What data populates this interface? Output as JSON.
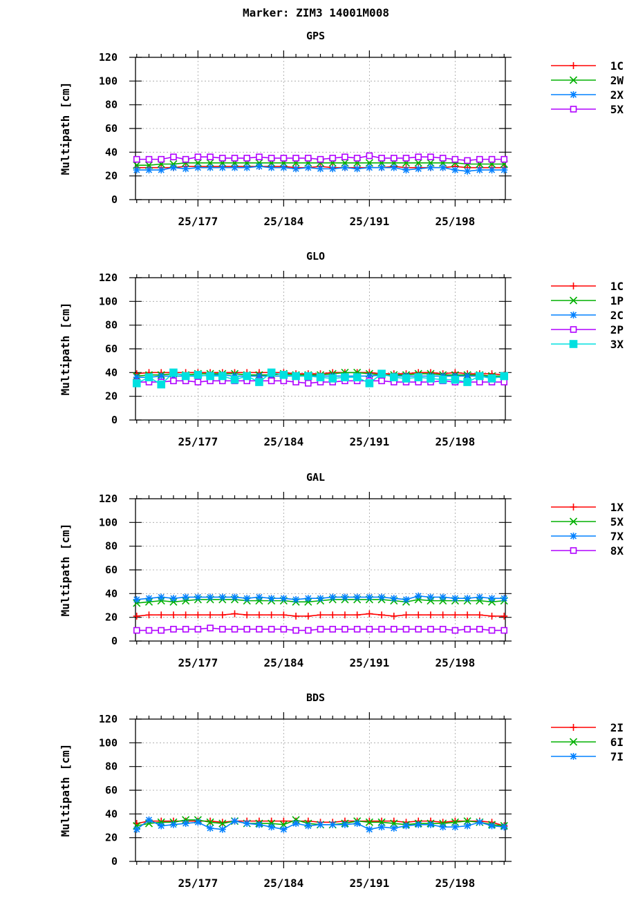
{
  "figure": {
    "title": "Marker: ZIM3 14001M008"
  },
  "chart_data": [
    {
      "type": "line",
      "title": "GPS",
      "ylabel": "Multipath [cm]",
      "xlabel": "",
      "ylim": [
        0,
        120
      ],
      "yticks": [
        0,
        20,
        40,
        60,
        80,
        100,
        120
      ],
      "x": [
        172,
        173,
        174,
        175,
        176,
        177,
        178,
        179,
        180,
        181,
        182,
        183,
        184,
        185,
        186,
        187,
        188,
        189,
        190,
        191,
        192,
        193,
        194,
        195,
        196,
        197,
        198,
        199,
        200,
        201,
        202
      ],
      "xlim": [
        171.9,
        202.1
      ],
      "xticks": [
        177,
        184,
        191,
        198
      ],
      "xticklabels": [
        "25/177",
        "25/184",
        "25/191",
        "25/198"
      ],
      "grid": true,
      "legend": "right",
      "series": [
        {
          "name": "1C",
          "color": "#ff0000",
          "marker": "plus",
          "values": [
            27,
            27,
            27,
            27,
            28,
            28,
            28,
            28,
            28,
            28,
            28,
            28,
            28,
            27,
            27,
            28,
            27,
            27,
            27,
            27,
            27,
            28,
            27,
            27,
            27,
            27,
            28,
            27,
            27,
            27,
            27
          ]
        },
        {
          "name": "2W",
          "color": "#00b000",
          "marker": "cross",
          "values": [
            29,
            29,
            30,
            30,
            31,
            31,
            31,
            31,
            31,
            31,
            31,
            31,
            31,
            31,
            31,
            31,
            31,
            31,
            31,
            31,
            31,
            31,
            31,
            31,
            31,
            31,
            31,
            30,
            30,
            30,
            30
          ]
        },
        {
          "name": "2X",
          "color": "#0080ff",
          "marker": "star",
          "values": [
            25,
            25,
            25,
            27,
            26,
            27,
            27,
            27,
            27,
            27,
            28,
            27,
            27,
            26,
            27,
            26,
            26,
            27,
            26,
            27,
            27,
            27,
            25,
            26,
            27,
            27,
            25,
            24,
            25,
            25,
            25
          ]
        },
        {
          "name": "5X",
          "color": "#b000ff",
          "marker": "square",
          "values": [
            34,
            34,
            34,
            36,
            34,
            36,
            36,
            35,
            35,
            35,
            36,
            35,
            35,
            35,
            35,
            34,
            35,
            36,
            35,
            37,
            35,
            35,
            35,
            36,
            36,
            35,
            34,
            33,
            34,
            34,
            34
          ]
        }
      ]
    },
    {
      "type": "line",
      "title": "GLO",
      "ylabel": "Multipath [cm]",
      "xlabel": "",
      "ylim": [
        0,
        120
      ],
      "yticks": [
        0,
        20,
        40,
        60,
        80,
        100,
        120
      ],
      "x": [
        172,
        173,
        174,
        175,
        176,
        177,
        178,
        179,
        180,
        181,
        182,
        183,
        184,
        185,
        186,
        187,
        188,
        189,
        190,
        191,
        192,
        193,
        194,
        195,
        196,
        197,
        198,
        199,
        200,
        201,
        202
      ],
      "xlim": [
        171.9,
        202.1
      ],
      "xticks": [
        177,
        184,
        191,
        198
      ],
      "xticklabels": [
        "25/177",
        "25/184",
        "25/191",
        "25/198"
      ],
      "grid": true,
      "legend": "right",
      "series": [
        {
          "name": "1C",
          "color": "#ff0000",
          "marker": "plus",
          "values": [
            39,
            40,
            40,
            40,
            40,
            40,
            40,
            40,
            40,
            40,
            40,
            40,
            40,
            39,
            39,
            39,
            40,
            40,
            40,
            40,
            39,
            39,
            39,
            40,
            40,
            39,
            40,
            39,
            39,
            39,
            38
          ]
        },
        {
          "name": "1P",
          "color": "#00b000",
          "marker": "cross",
          "values": [
            37,
            38,
            38,
            39,
            38,
            39,
            39,
            39,
            39,
            38,
            38,
            38,
            39,
            38,
            38,
            38,
            39,
            40,
            40,
            39,
            38,
            38,
            38,
            39,
            39,
            38,
            38,
            38,
            38,
            37,
            37
          ]
        },
        {
          "name": "2C",
          "color": "#0080ff",
          "marker": "star",
          "values": [
            36,
            36,
            37,
            37,
            37,
            37,
            38,
            38,
            37,
            37,
            37,
            37,
            37,
            37,
            37,
            37,
            37,
            37,
            37,
            37,
            38,
            37,
            37,
            37,
            37,
            37,
            37,
            37,
            37,
            36,
            36
          ]
        },
        {
          "name": "2P",
          "color": "#b000ff",
          "marker": "square",
          "values": [
            32,
            32,
            32,
            33,
            33,
            32,
            33,
            33,
            33,
            33,
            33,
            33,
            33,
            32,
            31,
            32,
            32,
            33,
            33,
            33,
            33,
            32,
            32,
            32,
            32,
            33,
            32,
            32,
            32,
            32,
            32
          ]
        },
        {
          "name": "3X",
          "color": "#00e0e0",
          "marker": "filled-square",
          "values": [
            31,
            36,
            30,
            40,
            37,
            38,
            37,
            37,
            34,
            37,
            32,
            40,
            38,
            37,
            37,
            36,
            35,
            36,
            36,
            31,
            39,
            36,
            35,
            36,
            35,
            34,
            34,
            32,
            37,
            35,
            37
          ]
        }
      ]
    },
    {
      "type": "line",
      "title": "GAL",
      "ylabel": "Multipath [cm]",
      "xlabel": "",
      "ylim": [
        0,
        120
      ],
      "yticks": [
        0,
        20,
        40,
        60,
        80,
        100,
        120
      ],
      "x": [
        172,
        173,
        174,
        175,
        176,
        177,
        178,
        179,
        180,
        181,
        182,
        183,
        184,
        185,
        186,
        187,
        188,
        189,
        190,
        191,
        192,
        193,
        194,
        195,
        196,
        197,
        198,
        199,
        200,
        201,
        202
      ],
      "xlim": [
        171.9,
        202.1
      ],
      "xticks": [
        177,
        184,
        191,
        198
      ],
      "xticklabels": [
        "25/177",
        "25/184",
        "25/191",
        "25/198"
      ],
      "grid": true,
      "legend": "right",
      "series": [
        {
          "name": "1X",
          "color": "#ff0000",
          "marker": "plus",
          "values": [
            21,
            22,
            22,
            22,
            22,
            22,
            22,
            22,
            23,
            22,
            22,
            22,
            22,
            21,
            21,
            22,
            22,
            22,
            22,
            23,
            22,
            21,
            22,
            22,
            22,
            22,
            22,
            22,
            22,
            21,
            21
          ]
        },
        {
          "name": "5X",
          "color": "#00b000",
          "marker": "cross",
          "values": [
            32,
            33,
            34,
            33,
            34,
            35,
            35,
            35,
            35,
            34,
            34,
            34,
            34,
            33,
            33,
            34,
            35,
            35,
            35,
            35,
            35,
            34,
            33,
            35,
            34,
            34,
            34,
            34,
            34,
            33,
            34
          ]
        },
        {
          "name": "7X",
          "color": "#0080ff",
          "marker": "star",
          "values": [
            35,
            36,
            37,
            36,
            37,
            37,
            37,
            37,
            37,
            36,
            37,
            36,
            36,
            35,
            36,
            36,
            37,
            37,
            37,
            37,
            37,
            36,
            35,
            38,
            37,
            37,
            36,
            36,
            37,
            36,
            36
          ]
        },
        {
          "name": "8X",
          "color": "#b000ff",
          "marker": "square",
          "values": [
            9,
            9,
            9,
            10,
            10,
            10,
            11,
            10,
            10,
            10,
            10,
            10,
            10,
            9,
            9,
            10,
            10,
            10,
            10,
            10,
            10,
            10,
            10,
            10,
            10,
            10,
            9,
            10,
            10,
            9,
            9
          ]
        }
      ]
    },
    {
      "type": "line",
      "title": "BDS",
      "ylabel": "Multipath [cm]",
      "xlabel": "",
      "ylim": [
        0,
        120
      ],
      "yticks": [
        0,
        20,
        40,
        60,
        80,
        100,
        120
      ],
      "x": [
        172,
        173,
        174,
        175,
        176,
        177,
        178,
        179,
        180,
        181,
        182,
        183,
        184,
        185,
        186,
        187,
        188,
        189,
        190,
        191,
        192,
        193,
        194,
        195,
        196,
        197,
        198,
        199,
        200,
        201,
        202
      ],
      "xlim": [
        171.9,
        202.1
      ],
      "xticks": [
        177,
        184,
        191,
        198
      ],
      "xticklabels": [
        "25/177",
        "25/184",
        "25/191",
        "25/198"
      ],
      "grid": true,
      "legend": "right",
      "series": [
        {
          "name": "2I",
          "color": "#ff0000",
          "marker": "plus",
          "values": [
            32,
            34,
            34,
            34,
            34,
            34,
            34,
            33,
            34,
            34,
            34,
            34,
            34,
            34,
            34,
            33,
            33,
            34,
            34,
            34,
            34,
            34,
            33,
            34,
            34,
            33,
            34,
            34,
            34,
            33,
            30
          ]
        },
        {
          "name": "6I",
          "color": "#00b000",
          "marker": "cross",
          "values": [
            30,
            32,
            33,
            33,
            35,
            35,
            33,
            32,
            34,
            32,
            32,
            32,
            31,
            35,
            32,
            31,
            31,
            32,
            34,
            33,
            33,
            32,
            31,
            32,
            32,
            32,
            33,
            34,
            33,
            31,
            30
          ]
        },
        {
          "name": "7I",
          "color": "#0080ff",
          "marker": "star",
          "values": [
            27,
            35,
            30,
            31,
            32,
            33,
            28,
            27,
            34,
            32,
            31,
            29,
            27,
            32,
            30,
            31,
            31,
            31,
            32,
            27,
            29,
            28,
            30,
            31,
            31,
            29,
            29,
            30,
            33,
            30,
            29
          ]
        }
      ]
    }
  ]
}
